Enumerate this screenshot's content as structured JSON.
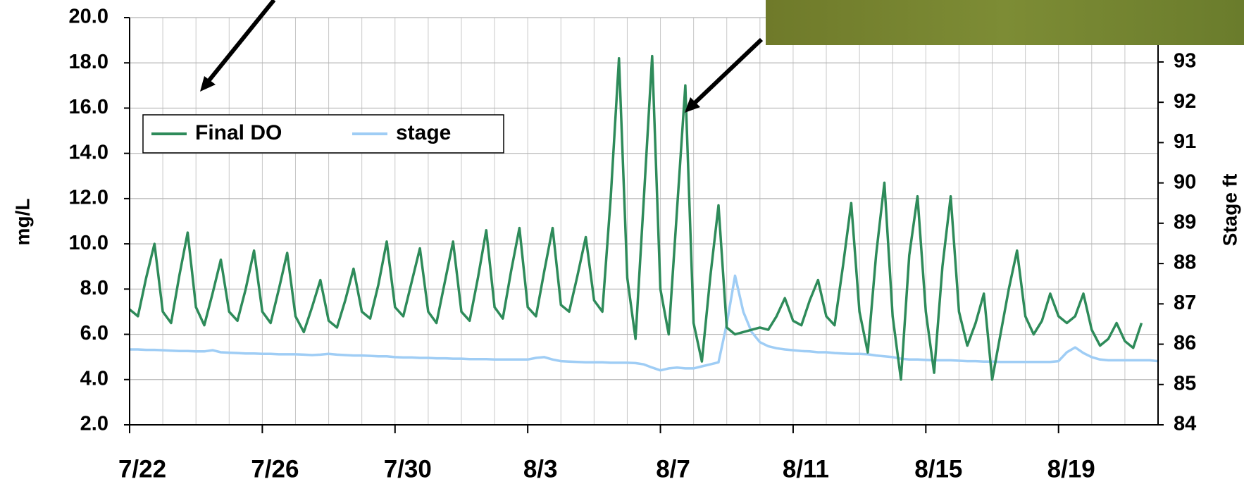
{
  "chart_data": {
    "type": "line",
    "ylabel": "mg/L",
    "y2label": "Stage ft",
    "ylim": [
      2,
      20
    ],
    "yticks": [
      {
        "value": 2,
        "label": "2.0"
      },
      {
        "value": 4,
        "label": "4.0"
      },
      {
        "value": 6,
        "label": "6.0"
      },
      {
        "value": 8,
        "label": "8.0"
      },
      {
        "value": 10,
        "label": "10.0"
      },
      {
        "value": 12,
        "label": "12.0"
      },
      {
        "value": 14,
        "label": "14.0"
      },
      {
        "value": 16,
        "label": "16.0"
      },
      {
        "value": 18,
        "label": "18.0"
      },
      {
        "value": 20,
        "label": "20.0"
      }
    ],
    "y2lim": [
      84,
      94.1
    ],
    "y2ticks": [
      84,
      85,
      86,
      87,
      88,
      89,
      90,
      91,
      92,
      93
    ],
    "xlim": [
      0,
      31
    ],
    "xticks": [
      {
        "value": 0,
        "label": "7/22"
      },
      {
        "value": 4,
        "label": "7/26"
      },
      {
        "value": 8,
        "label": "7/30"
      },
      {
        "value": 12,
        "label": "8/3"
      },
      {
        "value": 16,
        "label": "8/7"
      },
      {
        "value": 20,
        "label": "8/11"
      },
      {
        "value": 24,
        "label": "8/15"
      },
      {
        "value": 28,
        "label": "8/19"
      }
    ],
    "grid": true,
    "legend": "upper left",
    "x": [
      0,
      0.25,
      0.5,
      0.75,
      1,
      1.25,
      1.5,
      1.75,
      2,
      2.25,
      2.5,
      2.75,
      3,
      3.25,
      3.5,
      3.75,
      4,
      4.25,
      4.5,
      4.75,
      5,
      5.25,
      5.5,
      5.75,
      6,
      6.25,
      6.5,
      6.75,
      7,
      7.25,
      7.5,
      7.75,
      8,
      8.25,
      8.5,
      8.75,
      9,
      9.25,
      9.5,
      9.75,
      10,
      10.25,
      10.5,
      10.75,
      11,
      11.25,
      11.5,
      11.75,
      12,
      12.25,
      12.5,
      12.75,
      13,
      13.25,
      13.5,
      13.75,
      14,
      14.25,
      14.5,
      14.75,
      15,
      15.25,
      15.5,
      15.75,
      16,
      16.25,
      16.5,
      16.75,
      17,
      17.25,
      17.5,
      17.75,
      18,
      18.25,
      18.5,
      18.75,
      19,
      19.25,
      19.5,
      19.75,
      20,
      20.25,
      20.5,
      20.75,
      21,
      21.25,
      21.5,
      21.75,
      22,
      22.25,
      22.5,
      22.75,
      23,
      23.25,
      23.5,
      23.75,
      24,
      24.25,
      24.5,
      24.75,
      25,
      25.25,
      25.5,
      25.75,
      26,
      26.25,
      26.5,
      26.75,
      27,
      27.25,
      27.5,
      27.75,
      28,
      28.25,
      28.5,
      28.75,
      29,
      29.25,
      29.5,
      29.75,
      30,
      30.25,
      30.5,
      30.75,
      31
    ],
    "series": [
      {
        "name": "Final DO",
        "color": "#2e8b5a",
        "values": [
          7.1,
          6.8,
          8.5,
          10.0,
          7.0,
          6.5,
          8.6,
          10.5,
          7.2,
          6.4,
          7.8,
          9.3,
          7.0,
          6.6,
          8.0,
          9.7,
          7.0,
          6.5,
          8.0,
          9.6,
          6.8,
          6.1,
          7.2,
          8.4,
          6.6,
          6.3,
          7.5,
          8.9,
          7.0,
          6.7,
          8.2,
          10.1,
          7.2,
          6.8,
          8.3,
          9.8,
          7.0,
          6.5,
          8.3,
          10.1,
          7.0,
          6.6,
          8.5,
          10.6,
          7.2,
          6.7,
          8.8,
          10.7,
          7.2,
          6.8,
          8.8,
          10.7,
          7.3,
          7.0,
          8.6,
          10.3,
          7.5,
          7.0,
          12.0,
          18.2,
          8.5,
          5.8,
          12.0,
          18.3,
          8.0,
          6.0,
          11.5,
          17.0,
          6.5,
          4.8,
          8.5,
          11.7,
          6.3,
          6.0,
          6.1,
          6.2,
          6.3,
          6.2,
          6.8,
          7.6,
          6.6,
          6.4,
          7.5,
          8.4,
          6.8,
          6.4,
          9.0,
          11.8,
          7.0,
          5.2,
          9.5,
          12.7,
          6.8,
          4.0,
          9.5,
          12.1,
          7.0,
          4.3,
          9.0,
          12.1,
          7.0,
          5.5,
          6.5,
          7.8,
          4.0,
          6.0,
          8.0,
          9.7,
          6.8,
          6.0,
          6.6,
          7.8,
          6.8,
          6.5,
          6.8,
          7.8,
          6.2,
          5.5,
          5.8,
          6.5,
          5.7,
          5.4,
          6.5,
          null,
          null
        ]
      },
      {
        "name": "stage",
        "color": "#9fcdf5",
        "axis": "y2",
        "values": [
          85.87,
          85.87,
          85.86,
          85.86,
          85.85,
          85.84,
          85.83,
          85.83,
          85.82,
          85.82,
          85.85,
          85.8,
          85.79,
          85.78,
          85.77,
          85.77,
          85.76,
          85.76,
          85.75,
          85.75,
          85.75,
          85.74,
          85.73,
          85.74,
          85.76,
          85.74,
          85.73,
          85.72,
          85.72,
          85.71,
          85.7,
          85.7,
          85.68,
          85.67,
          85.67,
          85.66,
          85.66,
          85.65,
          85.65,
          85.64,
          85.64,
          85.63,
          85.63,
          85.63,
          85.62,
          85.62,
          85.62,
          85.62,
          85.62,
          85.66,
          85.68,
          85.62,
          85.58,
          85.57,
          85.56,
          85.55,
          85.55,
          85.55,
          85.54,
          85.54,
          85.54,
          85.53,
          85.5,
          85.42,
          85.35,
          85.4,
          85.42,
          85.4,
          85.4,
          85.45,
          85.5,
          85.55,
          86.5,
          87.7,
          86.8,
          86.3,
          86.05,
          85.95,
          85.9,
          85.87,
          85.85,
          85.83,
          85.82,
          85.8,
          85.8,
          85.78,
          85.77,
          85.76,
          85.76,
          85.75,
          85.72,
          85.7,
          85.68,
          85.64,
          85.62,
          85.62,
          85.61,
          85.6,
          85.6,
          85.6,
          85.59,
          85.58,
          85.58,
          85.57,
          85.57,
          85.56,
          85.56,
          85.56,
          85.56,
          85.56,
          85.56,
          85.56,
          85.58,
          85.8,
          85.92,
          85.78,
          85.68,
          85.62,
          85.6,
          85.6,
          85.6,
          85.6,
          85.6,
          85.6,
          85.58
        ]
      }
    ]
  }
}
